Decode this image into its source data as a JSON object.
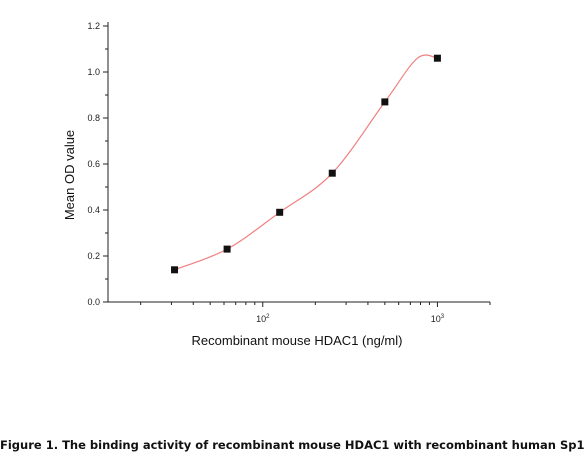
{
  "chart_data": {
    "type": "scatter",
    "xscale": "log",
    "x": [
      31.25,
      62.5,
      125,
      250,
      500,
      1000
    ],
    "y": [
      0.14,
      0.23,
      0.39,
      0.56,
      0.87,
      1.06
    ],
    "xlim": [
      13,
      2000
    ],
    "ylim": [
      0,
      1.2
    ],
    "yticks": [
      "0.0",
      "0.2",
      "0.4",
      "0.6",
      "0.8",
      "1.0",
      "1.2"
    ],
    "xticks": [
      {
        "value": 100,
        "base": "10",
        "exp": "2"
      },
      {
        "value": 1000,
        "base": "10",
        "exp": "3"
      }
    ],
    "xlabel": "Recombinant mouse HDAC1 (ng/ml)",
    "ylabel": "Mean OD value",
    "fit_color": "#f08080",
    "marker_color": "#111111",
    "grid": false
  },
  "caption": "Figure 1. The binding activity of recombinant mouse HDAC1 with recombinant human Sp1"
}
